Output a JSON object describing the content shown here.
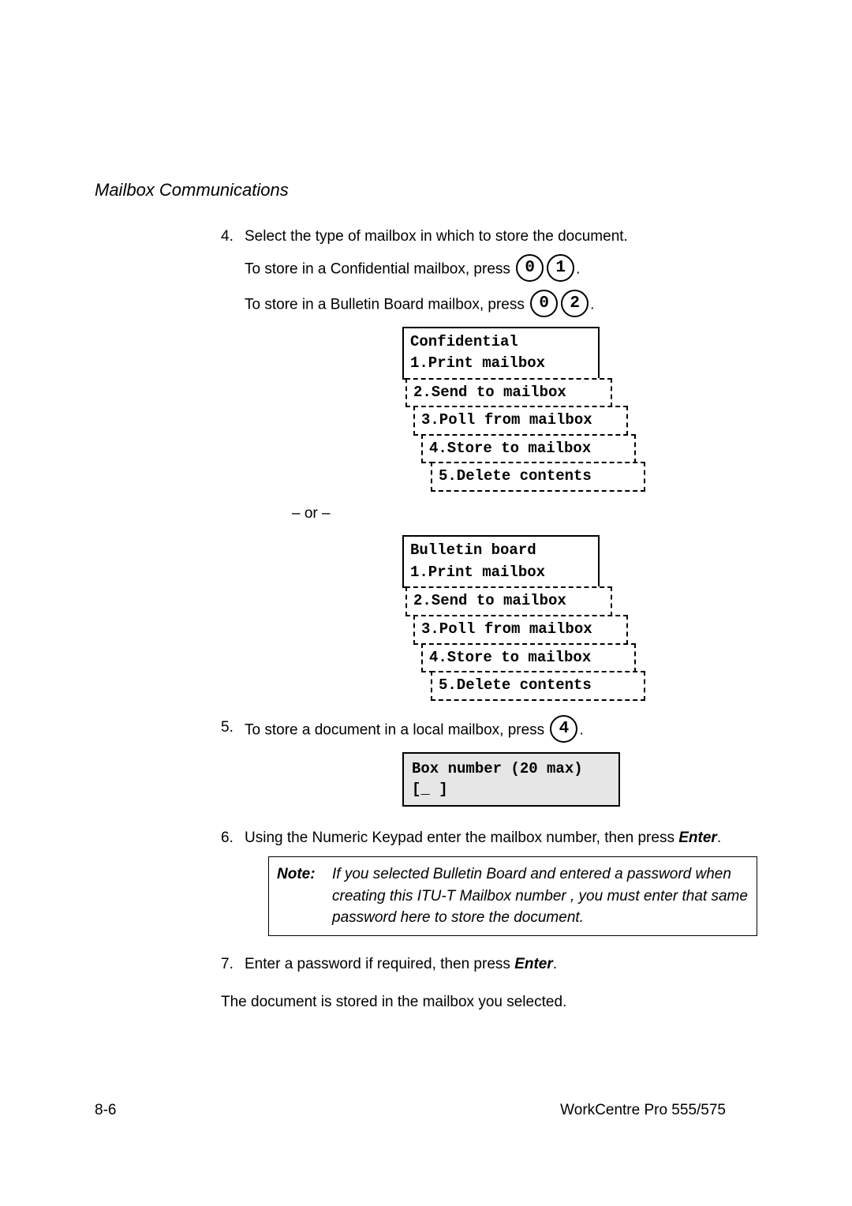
{
  "section_title": "Mailbox Communications",
  "steps": {
    "s4": {
      "num": "4.",
      "text": "Select the type of mailbox in which to store the document.",
      "line_conf_pre": "To store in a Confidential mailbox, press ",
      "conf_keys": [
        "0",
        "1"
      ],
      "line_bull_pre": "To store in a Bulletin Board mailbox, press ",
      "bull_keys": [
        "0",
        "2"
      ],
      "period": "."
    },
    "lcd_conf": {
      "line1": "Confidential",
      "line2": "1.Print mailbox",
      "opt2": "2.Send to mailbox",
      "opt3": "3.Poll from mailbox",
      "opt4": "4.Store to mailbox",
      "opt5": "5.Delete contents"
    },
    "or_sep": "– or –",
    "lcd_bull": {
      "line1": "Bulletin board",
      "line2": "1.Print mailbox",
      "opt2": "2.Send to mailbox",
      "opt3": "3.Poll from mailbox",
      "opt4": "4.Store to mailbox",
      "opt5": "5.Delete contents"
    },
    "s5": {
      "num": "5.",
      "text_pre": "To store a document in a local mailbox, press ",
      "key": "4",
      "period": "."
    },
    "boxnum_lcd": {
      "line1": "Box number   (20 max)",
      "line2": "[_                  ]"
    },
    "s6": {
      "num": "6.",
      "text_pre": "Using the Numeric Keypad enter the mailbox number, then press ",
      "enter": "Enter",
      "period": "."
    },
    "note": {
      "label": "Note:",
      "text": "If you selected Bulletin Board and entered a password when creating this ITU-T Mailbox number , you must enter that same password here to store the document."
    },
    "s7": {
      "num": "7.",
      "text_pre": "Enter a password if required, then press ",
      "enter": "Enter",
      "period": "."
    },
    "closing": "The document is stored in the mailbox you selected."
  },
  "footer": {
    "left": "8-6",
    "right": "WorkCentre Pro 555/575"
  },
  "colors": {
    "bg": "#ffffff",
    "text": "#000000",
    "lcd_fill": "#e6e6e6"
  }
}
